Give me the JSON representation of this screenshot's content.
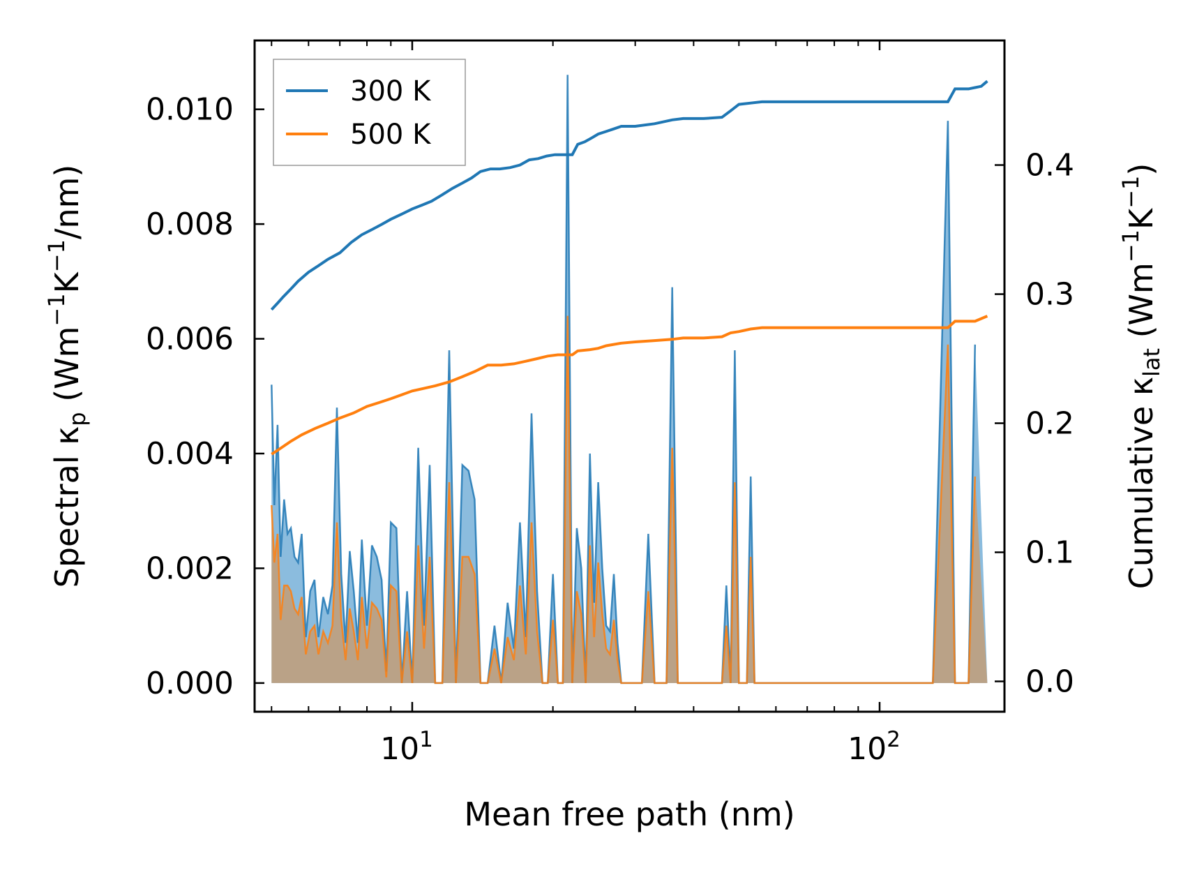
{
  "chart_data": {
    "type": "line",
    "xscale": "log",
    "xlabel": "Mean free path (nm)",
    "ylabel_left_parts": [
      "Spectral κ",
      "p",
      " (Wm",
      "−1",
      "K",
      "−1",
      "/nm)"
    ],
    "ylabel_right_parts": [
      "Cumulative κ",
      "lat",
      " (Wm",
      "−1",
      "K",
      "−1",
      ")"
    ],
    "xlim": [
      4.6,
      185
    ],
    "ylim_left": [
      -0.0005,
      0.0112
    ],
    "ylim_right": [
      -0.0235,
      0.4965
    ],
    "x_major_ticks": [
      10,
      100
    ],
    "x_tick_labels": [
      {
        "base": "10",
        "exp": "1"
      },
      {
        "base": "10",
        "exp": "2"
      }
    ],
    "y_left_ticks": [
      0,
      0.002,
      0.004,
      0.006,
      0.008,
      0.01
    ],
    "y_left_tick_labels": [
      "0.000",
      "0.002",
      "0.004",
      "0.006",
      "0.008",
      "0.010"
    ],
    "y_right_ticks": [
      0,
      0.1,
      0.2,
      0.3,
      0.4
    ],
    "y_right_tick_labels": [
      "0.0",
      "0.1",
      "0.2",
      "0.3",
      "0.4"
    ],
    "legend": {
      "position": "upper-left",
      "entries": [
        "300 K",
        "500 K"
      ]
    },
    "colors": {
      "300 K": "#1f77b4",
      "500 K": "#ff7f0e",
      "fill_300": "#5a9fd0",
      "fill_500": "#c99a6a"
    },
    "spectral_x": [
      5.0,
      5.07,
      5.15,
      5.23,
      5.32,
      5.41,
      5.5,
      5.6,
      5.7,
      5.8,
      5.92,
      6.05,
      6.18,
      6.3,
      6.45,
      6.6,
      6.75,
      6.9,
      7.05,
      7.2,
      7.35,
      7.5,
      7.65,
      7.8,
      8.0,
      8.2,
      8.4,
      8.6,
      8.8,
      9.0,
      9.25,
      9.5,
      9.75,
      10.0,
      10.3,
      10.6,
      10.9,
      11.2,
      11.6,
      12.0,
      12.4,
      12.8,
      13.2,
      13.6,
      14.0,
      14.5,
      15.0,
      15.5,
      16.0,
      16.5,
      17.0,
      17.5,
      18.0,
      18.5,
      19.0,
      19.5,
      20.0,
      20.5,
      21.0,
      21.5,
      22.0,
      22.5,
      23.0,
      23.5,
      24.0,
      24.5,
      25.0,
      25.5,
      26.0,
      26.5,
      27.0,
      27.5,
      28.0,
      28.5,
      29.0,
      29.5,
      30.0,
      31.0,
      32.0,
      33.0,
      34.0,
      35.0,
      36.0,
      37.0,
      38.0,
      39.0,
      40.0,
      42.0,
      44.0,
      46.0,
      47.0,
      48.0,
      49.0,
      50.0,
      51.0,
      52.0,
      53.0,
      54.0,
      55.0,
      56.0,
      58.0,
      60.0,
      70.0,
      80.0,
      90.0,
      100.0,
      110.0,
      120.0,
      130.0,
      140.0,
      145.0,
      150.0,
      155.0,
      160.0,
      165.0,
      170.0
    ],
    "series": [
      {
        "name": "300 K",
        "spectral": [
          0.0052,
          0.0031,
          0.0045,
          0.0022,
          0.0032,
          0.0026,
          0.0027,
          0.0022,
          0.0021,
          0.0026,
          0.0008,
          0.0016,
          0.0018,
          0.0008,
          0.0015,
          0.0012,
          0.0017,
          0.0048,
          0.0019,
          0.0007,
          0.0023,
          0.0016,
          0.0007,
          0.0025,
          0.001,
          0.0024,
          0.0022,
          0.0018,
          0.0002,
          0.0028,
          0.0027,
          0.0,
          0.0016,
          0.0,
          0.0041,
          0.001,
          0.0038,
          0.0,
          0.0,
          0.0058,
          0.0,
          0.0038,
          0.0037,
          0.0032,
          0.0,
          0.0,
          0.001,
          0.0,
          0.0014,
          0.0006,
          0.0028,
          0.0008,
          0.0047,
          0.0016,
          0.0,
          0.0,
          0.0019,
          0.0,
          0.0,
          0.0106,
          0.0,
          0.0027,
          0.002,
          0.0,
          0.004,
          0.0014,
          0.0035,
          0.002,
          0.001,
          0.0009,
          0.0019,
          0.0007,
          0.0,
          0.0,
          0.0,
          0.0,
          0.0,
          0.0,
          0.0026,
          0.0,
          0.0,
          0.0,
          0.0069,
          0.0,
          0.0,
          0.0,
          0.0,
          0.0,
          0.0,
          0.0,
          0.0017,
          0.0,
          0.0058,
          0.0,
          0.0,
          0.0,
          0.0036,
          0.0,
          0.0,
          0.0,
          0.0,
          0.0,
          0.0,
          0.0,
          0.0,
          0.0,
          0.0,
          0.0,
          0.0,
          0.0098,
          0.0,
          0.0,
          0.0,
          0.0059
        ],
        "cumulative_x": [
          5.0,
          5.15,
          5.3,
          5.5,
          5.7,
          6.0,
          6.3,
          6.6,
          7.0,
          7.4,
          7.8,
          8.2,
          8.6,
          9.0,
          9.5,
          10.0,
          10.5,
          11.0,
          11.6,
          12.2,
          12.8,
          13.4,
          14.0,
          14.7,
          15.4,
          16.2,
          17.0,
          17.8,
          18.6,
          19.4,
          20.2,
          21.0,
          21.8,
          22.0,
          22.6,
          23.4,
          24.2,
          25.0,
          26.0,
          27.0,
          28.0,
          30.0,
          33.0,
          36.0,
          38.0,
          42.0,
          46.0,
          48.0,
          50.0,
          53.0,
          56.0,
          60.0,
          70.0,
          80.0,
          100.0,
          120.0,
          140.0,
          145.0,
          155.0,
          165.0,
          170.0
        ],
        "cumulative": [
          0.288,
          0.293,
          0.298,
          0.304,
          0.31,
          0.317,
          0.322,
          0.327,
          0.332,
          0.34,
          0.346,
          0.35,
          0.354,
          0.358,
          0.362,
          0.366,
          0.369,
          0.372,
          0.377,
          0.382,
          0.386,
          0.39,
          0.395,
          0.397,
          0.397,
          0.398,
          0.4,
          0.404,
          0.405,
          0.407,
          0.408,
          0.408,
          0.408,
          0.408,
          0.416,
          0.418,
          0.421,
          0.424,
          0.426,
          0.428,
          0.43,
          0.43,
          0.432,
          0.435,
          0.436,
          0.436,
          0.437,
          0.442,
          0.447,
          0.448,
          0.449,
          0.449,
          0.449,
          0.449,
          0.449,
          0.449,
          0.449,
          0.459,
          0.459,
          0.461,
          0.465
        ]
      },
      {
        "name": "500 K",
        "spectral": [
          0.0031,
          0.0021,
          0.0026,
          0.0011,
          0.0017,
          0.0017,
          0.0016,
          0.0013,
          0.0012,
          0.0015,
          0.0005,
          0.0009,
          0.001,
          0.0005,
          0.0009,
          0.0007,
          0.001,
          0.0028,
          0.0011,
          0.0004,
          0.0013,
          0.0009,
          0.0004,
          0.0015,
          0.0006,
          0.0014,
          0.0013,
          0.0011,
          0.0001,
          0.0017,
          0.0016,
          0.0,
          0.0009,
          0.0,
          0.0024,
          0.0006,
          0.0022,
          0.0,
          0.0,
          0.0035,
          0.0,
          0.0022,
          0.0022,
          0.0019,
          0.0,
          0.0,
          0.0006,
          0.0,
          0.0008,
          0.0004,
          0.0017,
          0.0005,
          0.0028,
          0.0009,
          0.0,
          0.0,
          0.0011,
          0.0,
          0.0,
          0.0064,
          0.0,
          0.0016,
          0.0012,
          0.0,
          0.0024,
          0.0008,
          0.0021,
          0.0012,
          0.0006,
          0.0005,
          0.0011,
          0.0004,
          0.0,
          0.0,
          0.0,
          0.0,
          0.0,
          0.0,
          0.0016,
          0.0,
          0.0,
          0.0,
          0.0041,
          0.0,
          0.0,
          0.0,
          0.0,
          0.0,
          0.0,
          0.0,
          0.001,
          0.0,
          0.0035,
          0.0,
          0.0,
          0.0,
          0.0022,
          0.0,
          0.0,
          0.0,
          0.0,
          0.0,
          0.0,
          0.0,
          0.0,
          0.0,
          0.0,
          0.0,
          0.0,
          0.0059,
          0.0,
          0.0,
          0.0,
          0.0036
        ],
        "cumulative_x": [
          5.0,
          5.2,
          5.5,
          5.8,
          6.2,
          6.6,
          7.0,
          7.5,
          8.0,
          8.5,
          9.0,
          9.5,
          10.0,
          10.6,
          11.2,
          12.0,
          12.8,
          13.6,
          14.5,
          15.5,
          16.5,
          17.5,
          18.5,
          19.5,
          20.5,
          21.5,
          22.0,
          22.6,
          24.0,
          25.0,
          26.0,
          28.0,
          30.0,
          33.0,
          36.0,
          38.0,
          42.0,
          46.0,
          48.0,
          50.0,
          53.0,
          56.0,
          60.0,
          80.0,
          100.0,
          140.0,
          145.0,
          160.0,
          170.0
        ],
        "cumulative": [
          0.176,
          0.18,
          0.186,
          0.191,
          0.196,
          0.2,
          0.204,
          0.208,
          0.213,
          0.216,
          0.219,
          0.222,
          0.225,
          0.227,
          0.229,
          0.232,
          0.236,
          0.24,
          0.245,
          0.245,
          0.246,
          0.248,
          0.25,
          0.252,
          0.253,
          0.253,
          0.253,
          0.256,
          0.257,
          0.258,
          0.26,
          0.262,
          0.263,
          0.264,
          0.265,
          0.266,
          0.266,
          0.267,
          0.27,
          0.271,
          0.273,
          0.274,
          0.274,
          0.274,
          0.274,
          0.274,
          0.279,
          0.279,
          0.283
        ]
      }
    ]
  }
}
